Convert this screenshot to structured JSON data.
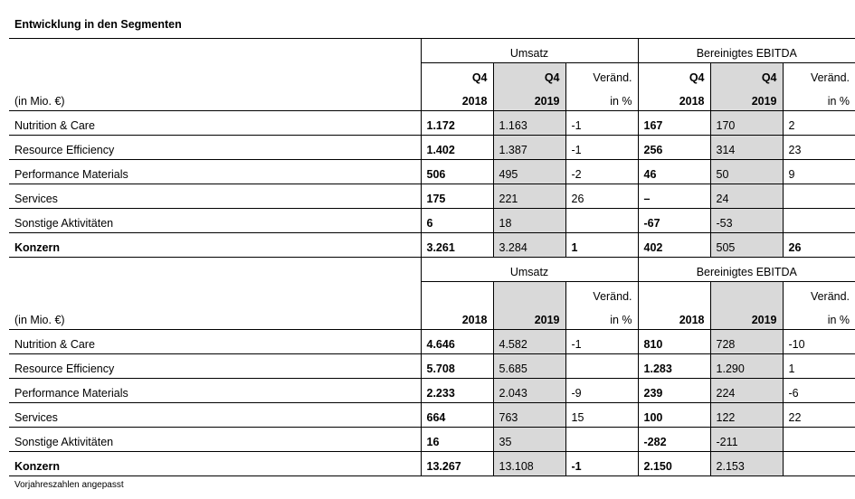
{
  "title": "Entwicklung in den Segmenten",
  "footnote": "Vorjahreszahlen angepasst",
  "unit_label": "(in Mio. €)",
  "group_umsatz": "Umsatz",
  "group_ebitda": "Bereinigtes EBITDA",
  "col_q4_2018": "Q4\n2018",
  "col_q4_2019": "Q4\n2019",
  "col_change": "Veränd.\nin %",
  "col_y2018": "2018",
  "col_y2019": "2019",
  "q": {
    "r0": {
      "label": "Nutrition & Care",
      "u18": "1.172",
      "u19": "1.163",
      "uch": "-1",
      "e18": "167",
      "e19": "170",
      "ech": "2"
    },
    "r1": {
      "label": "Resource Efficiency",
      "u18": "1.402",
      "u19": "1.387",
      "uch": "-1",
      "e18": "256",
      "e19": "314",
      "ech": "23"
    },
    "r2": {
      "label": "Performance Materials",
      "u18": "506",
      "u19": "495",
      "uch": "-2",
      "e18": "46",
      "e19": "50",
      "ech": "9"
    },
    "r3": {
      "label": "Services",
      "u18": "175",
      "u19": "221",
      "uch": "26",
      "e18": "–",
      "e19": "24",
      "ech": ""
    },
    "r4": {
      "label": "Sonstige Aktivitäten",
      "u18": "6",
      "u19": "18",
      "uch": "",
      "e18": "-67",
      "e19": "-53",
      "ech": ""
    },
    "r5": {
      "label": "Konzern",
      "u18": "3.261",
      "u19": "3.284",
      "uch": "1",
      "e18": "402",
      "e19": "505",
      "ech": "26"
    }
  },
  "y": {
    "r0": {
      "label": "Nutrition & Care",
      "u18": "4.646",
      "u19": "4.582",
      "uch": "-1",
      "e18": "810",
      "e19": "728",
      "ech": "-10"
    },
    "r1": {
      "label": "Resource Efficiency",
      "u18": "5.708",
      "u19": "5.685",
      "uch": "",
      "e18": "1.283",
      "e19": "1.290",
      "ech": "1"
    },
    "r2": {
      "label": "Performance Materials",
      "u18": "2.233",
      "u19": "2.043",
      "uch": "-9",
      "e18": "239",
      "e19": "224",
      "ech": "-6"
    },
    "r3": {
      "label": "Services",
      "u18": "664",
      "u19": "763",
      "uch": "15",
      "e18": "100",
      "e19": "122",
      "ech": "22"
    },
    "r4": {
      "label": "Sonstige Aktivitäten",
      "u18": "16",
      "u19": "35",
      "uch": "",
      "e18": "-282",
      "e19": "-211",
      "ech": ""
    },
    "r5": {
      "label": "Konzern",
      "u18": "13.267",
      "u19": "13.108",
      "uch": "-1",
      "e18": "2.150",
      "e19": "2.153",
      "ech": ""
    }
  }
}
